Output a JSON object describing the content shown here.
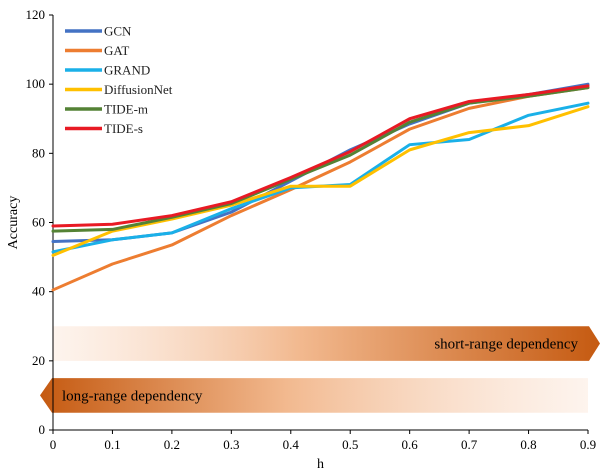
{
  "chart_data": {
    "type": "line",
    "xlabel": "h",
    "ylabel": "Accuracy",
    "x": [
      0,
      0.1,
      0.2,
      0.3,
      0.4,
      0.5,
      0.6,
      0.7,
      0.8,
      0.9
    ],
    "xlim": [
      0,
      0.9
    ],
    "ylim": [
      0,
      120
    ],
    "x_ticks": [
      "0",
      "0.1",
      "0.2",
      "0.3",
      "0.4",
      "0.5",
      "0.6",
      "0.7",
      "0.8",
      "0.9"
    ],
    "y_ticks": [
      "0",
      "20",
      "40",
      "60",
      "80",
      "100",
      "120"
    ],
    "grid": false,
    "legend_position": "top-left",
    "series": [
      {
        "name": "GCN",
        "color": "#4472C4",
        "values": [
          54.5,
          55.0,
          57.0,
          63.0,
          72.0,
          81.0,
          88.5,
          94.5,
          97.0,
          100.0
        ]
      },
      {
        "name": "GAT",
        "color": "#ED7D31",
        "values": [
          40.5,
          48.0,
          53.5,
          62.0,
          69.5,
          77.5,
          87.0,
          93.0,
          96.5,
          99.0
        ]
      },
      {
        "name": "GRAND",
        "color": "#1AB0E8",
        "values": [
          51.5,
          55.0,
          57.0,
          64.0,
          70.0,
          71.0,
          82.5,
          84.0,
          91.0,
          94.5
        ]
      },
      {
        "name": "DiffusionNet",
        "color": "#FFC000",
        "values": [
          50.5,
          57.5,
          61.0,
          65.0,
          70.5,
          70.5,
          81.0,
          86.0,
          88.0,
          93.5
        ]
      },
      {
        "name": "TIDE-m",
        "color": "#548235",
        "values": [
          57.5,
          58.0,
          61.5,
          65.5,
          72.5,
          79.5,
          89.0,
          94.5,
          96.5,
          99.0
        ]
      },
      {
        "name": "TIDE-s",
        "color": "#E81A24",
        "values": [
          59.0,
          59.5,
          62.0,
          66.0,
          73.0,
          80.5,
          90.0,
          95.0,
          97.0,
          99.5
        ]
      }
    ],
    "annotations": [
      {
        "text": "short-range dependency",
        "direction": "right",
        "y_range": [
          20,
          30
        ]
      },
      {
        "text": "long-range dependency",
        "direction": "left",
        "y_range": [
          5,
          15
        ]
      }
    ]
  }
}
